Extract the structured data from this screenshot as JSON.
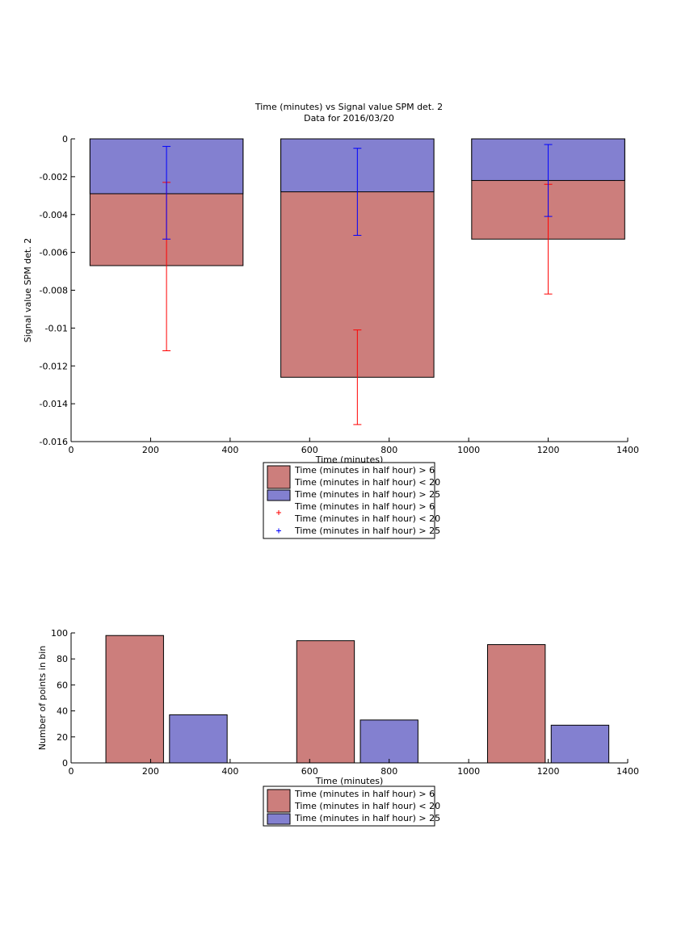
{
  "figure": {
    "title_line1": "Time (minutes) vs Signal value SPM det. 2",
    "title_line2": "Data for 2016/03/20"
  },
  "colors": {
    "red_fill": "#cc7e7c",
    "blue_fill": "#8380d0",
    "red_err": "#ff0000",
    "blue_err": "#0000ff"
  },
  "chart_data": [
    {
      "type": "bar",
      "subtype": "overlaid bars with error bars",
      "title": "Time (minutes) vs Signal value SPM det. 2\nData for 2016/03/20",
      "xlabel": "Time (minutes)",
      "ylabel": "Signal value SPM det. 2",
      "xlim": [
        0,
        1400
      ],
      "ylim": [
        -0.016,
        0
      ],
      "xticks": [
        0,
        200,
        400,
        600,
        800,
        1000,
        1200,
        1400
      ],
      "yticks": [
        0,
        -0.002,
        -0.004,
        -0.006,
        -0.008,
        -0.01,
        -0.012,
        -0.014,
        -0.016
      ],
      "ytick_labels": [
        "0",
        "-0.002",
        "-0.004",
        "-0.006",
        "-0.008",
        "-0.01",
        "-0.012",
        "-0.014",
        "-0.016"
      ],
      "bar_x": [
        240,
        720,
        1200
      ],
      "bar_width": 385,
      "series": [
        {
          "name": "Time (minutes in half hour) > 6\nTime (minutes in half hour) < 20",
          "color": "#cc7e7c",
          "values": [
            -0.0067,
            -0.0126,
            -0.0053
          ]
        },
        {
          "name": "Time (minutes in half hour) > 25",
          "color": "#8380d0",
          "values": [
            -0.0029,
            -0.0028,
            -0.0022
          ]
        }
      ],
      "error_bars": [
        {
          "name": "Time (minutes in half hour) > 6\nTime (minutes in half hour) < 20",
          "marker": "+",
          "color": "#ff0000",
          "x": [
            240,
            720,
            1200
          ],
          "lower": [
            -0.0112,
            -0.0151,
            -0.0082
          ],
          "upper": [
            -0.0023,
            -0.0101,
            -0.0024
          ]
        },
        {
          "name": "Time (minutes in half hour) > 25",
          "marker": "+",
          "color": "#0000ff",
          "x": [
            240,
            720,
            1200
          ],
          "lower": [
            -0.0053,
            -0.0051,
            -0.0041
          ],
          "upper": [
            -0.0004,
            -0.0005,
            -0.0003
          ]
        }
      ],
      "legend": {
        "placement": "below",
        "entries": [
          {
            "kind": "patch",
            "color": "#cc7e7c",
            "label_line1": "Time (minutes in half hour) > 6",
            "label_line2": "Time (minutes in half hour) < 20"
          },
          {
            "kind": "patch",
            "color": "#8380d0",
            "label_line1": "Time (minutes in half hour) > 25",
            "label_line2": ""
          },
          {
            "kind": "marker",
            "color": "#ff0000",
            "label_line1": "Time (minutes in half hour) > 6",
            "label_line2": "Time (minutes in half hour) < 20"
          },
          {
            "kind": "marker",
            "color": "#0000ff",
            "label_line1": "Time (minutes in half hour) > 25",
            "label_line2": ""
          }
        ]
      }
    },
    {
      "type": "bar",
      "subtype": "grouped bars",
      "xlabel": "Time (minutes)",
      "ylabel": "Number of points in bin",
      "xlim": [
        0,
        1400
      ],
      "ylim": [
        0,
        100
      ],
      "xticks": [
        0,
        200,
        400,
        600,
        800,
        1000,
        1200,
        1400
      ],
      "yticks": [
        0,
        20,
        40,
        60,
        80,
        100
      ],
      "ytick_labels": [
        "0",
        "20",
        "40",
        "60",
        "80",
        "100"
      ],
      "bar_width": 145,
      "series": [
        {
          "name": "Time (minutes in half hour) > 6\nTime (minutes in half hour) < 20",
          "color": "#cc7e7c",
          "x": [
            160,
            640,
            1120
          ],
          "values": [
            98,
            94,
            91
          ]
        },
        {
          "name": "Time (minutes in half hour) > 25",
          "color": "#8380d0",
          "x": [
            320,
            800,
            1280
          ],
          "values": [
            37,
            33,
            29
          ]
        }
      ],
      "legend": {
        "placement": "below",
        "entries": [
          {
            "kind": "patch",
            "color": "#cc7e7c",
            "label_line1": "Time (minutes in half hour) > 6",
            "label_line2": "Time (minutes in half hour) < 20"
          },
          {
            "kind": "patch",
            "color": "#8380d0",
            "label_line1": "Time (minutes in half hour) > 25",
            "label_line2": ""
          }
        ]
      }
    }
  ]
}
